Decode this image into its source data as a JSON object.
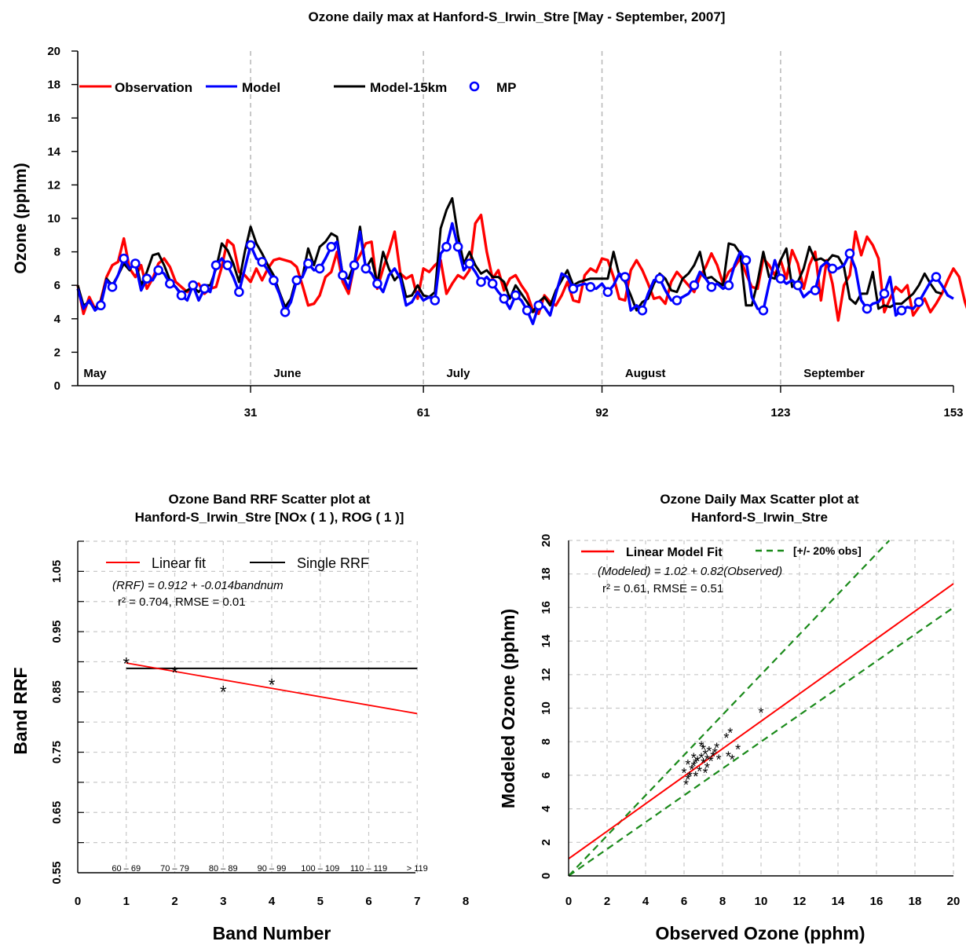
{
  "chart_data": [
    {
      "type": "line",
      "title": "Ozone daily max at  Hanford-S_Irwin_Stre [May - September, 2007]",
      "xlabel": "",
      "ylabel": "Ozone (pphm)",
      "xlim": [
        1,
        153
      ],
      "ylim": [
        0,
        20
      ],
      "xticks": [
        31,
        61,
        92,
        123,
        153
      ],
      "yticks": [
        0,
        2,
        4,
        6,
        8,
        10,
        12,
        14,
        16,
        18,
        20
      ],
      "month_labels": [
        {
          "day": 2,
          "label": "May"
        },
        {
          "day": 35,
          "label": "June"
        },
        {
          "day": 65,
          "label": "July"
        },
        {
          "day": 96,
          "label": "August"
        },
        {
          "day": 127,
          "label": "September"
        }
      ],
      "month_boundaries": [
        31,
        61,
        92,
        123
      ],
      "legend": [
        "Observation",
        "Model",
        "Model-15km",
        "MP"
      ],
      "colors": {
        "Observation": "#ff0000",
        "Model": "#0000ff",
        "Model-15km": "#000000",
        "MP": "#0000ff"
      },
      "series": [
        {
          "name": "Observation",
          "values": [
            6.0,
            4.3,
            5.3,
            4.6,
            5.1,
            6.5,
            7.2,
            7.4,
            8.8,
            7.0,
            6.5,
            7.2,
            5.8,
            6.4,
            7.3,
            7.6,
            7.1,
            6.2,
            5.9,
            5.6,
            6.0,
            6.1,
            5.5,
            5.8,
            5.9,
            7.1,
            8.7,
            8.4,
            6.8,
            6.6,
            6.2,
            7.0,
            6.3,
            7.0,
            7.5,
            7.6,
            7.5,
            7.4,
            7.1,
            6.0,
            4.8,
            4.9,
            5.4,
            6.5,
            6.8,
            8.0,
            6.2,
            5.5,
            7.2,
            7.8,
            8.5,
            8.6,
            5.8,
            7.0,
            8.0,
            9.2,
            6.7,
            6.4,
            6.6,
            5.2,
            7.0,
            6.8,
            7.2,
            7.5,
            5.5,
            6.1,
            6.6,
            6.4,
            6.9,
            9.7,
            10.2,
            8.0,
            6.4,
            6.9,
            5.7,
            6.4,
            6.6,
            6.0,
            5.5,
            4.5,
            4.3,
            5.4,
            5.0,
            4.8,
            5.4,
            6.2,
            5.1,
            5.0,
            6.6,
            7.0,
            6.8,
            7.6,
            7.5,
            6.5,
            5.2,
            5.1,
            6.9,
            7.5,
            6.9,
            6.1,
            5.2,
            5.3,
            4.9,
            6.2,
            6.8,
            6.4,
            6.0,
            5.6,
            6.5,
            7.1,
            7.9,
            7.2,
            6.1,
            6.8,
            7.1,
            7.6,
            6.7,
            5.9,
            5.8,
            7.6,
            7.2,
            6.6,
            7.5,
            6.4,
            8.1,
            7.3,
            5.8,
            7.2,
            8.0,
            5.1,
            7.5,
            6.1,
            3.9,
            6.0,
            6.6,
            9.2,
            7.8,
            8.9,
            8.4,
            7.6,
            4.4,
            5.2,
            5.9,
            5.6,
            6.0,
            4.2,
            4.7,
            5.2,
            4.4,
            4.9,
            5.5,
            6.3,
            7.0,
            6.5,
            5.0,
            4.0,
            6.2
          ]
        },
        {
          "name": "Model",
          "values": [
            5.8,
            4.6,
            5.1,
            4.5,
            4.8,
            6.3,
            5.9,
            6.6,
            7.6,
            7.0,
            7.3,
            5.7,
            6.4,
            6.3,
            6.9,
            6.7,
            6.1,
            5.9,
            5.4,
            5.1,
            6.0,
            5.1,
            5.8,
            5.6,
            7.2,
            7.6,
            7.2,
            6.5,
            5.6,
            7.0,
            8.4,
            7.6,
            7.4,
            6.9,
            6.3,
            5.5,
            4.4,
            5.0,
            6.3,
            6.5,
            7.3,
            6.9,
            7.0,
            7.6,
            8.3,
            8.6,
            6.6,
            5.8,
            7.2,
            9.2,
            7.0,
            6.7,
            6.1,
            5.6,
            6.6,
            7.0,
            6.4,
            4.8,
            5.0,
            5.6,
            5.1,
            5.3,
            5.1,
            7.9,
            8.3,
            9.7,
            8.3,
            6.9,
            7.3,
            6.8,
            6.2,
            6.5,
            6.1,
            5.6,
            5.2,
            4.6,
            5.4,
            5.1,
            4.5,
            3.7,
            4.8,
            4.7,
            4.2,
            5.5,
            6.7,
            6.5,
            5.8,
            6.0,
            6.1,
            5.9,
            5.8,
            6.1,
            5.6,
            6.0,
            6.7,
            6.5,
            4.5,
            4.8,
            4.5,
            5.5,
            6.3,
            6.4,
            5.7,
            5.1,
            5.1,
            5.3,
            5.5,
            6.0,
            6.8,
            6.4,
            5.9,
            6.1,
            5.8,
            6.0,
            7.2,
            8.0,
            7.5,
            5.3,
            4.6,
            4.5,
            6.1,
            7.5,
            6.4,
            6.1,
            6.3,
            6.0,
            5.3,
            5.6,
            5.7,
            7.1,
            7.4,
            7.0,
            7.0,
            7.2,
            7.9,
            7.0,
            5.1,
            4.6,
            4.9,
            5.0,
            5.5,
            6.5,
            4.2,
            4.5,
            4.7,
            4.6,
            5.0,
            5.6,
            6.2,
            6.5,
            6.0,
            5.4,
            5.2
          ]
        },
        {
          "name": "Model-15km",
          "values": [
            6.0,
            4.8,
            5.0,
            4.6,
            5.0,
            6.4,
            6.0,
            6.6,
            7.3,
            6.9,
            7.5,
            6.0,
            6.8,
            7.8,
            7.9,
            7.2,
            6.3,
            5.9,
            5.5,
            5.7,
            5.9,
            5.6,
            6.0,
            6.0,
            7.0,
            8.5,
            8.1,
            7.3,
            6.2,
            8.0,
            9.5,
            8.5,
            7.9,
            7.2,
            6.6,
            5.6,
            4.7,
            5.2,
            6.5,
            6.5,
            8.2,
            7.2,
            8.3,
            8.6,
            9.1,
            8.9,
            6.6,
            6.4,
            7.3,
            9.5,
            7.0,
            7.6,
            6.1,
            8.0,
            7.0,
            6.3,
            6.7,
            5.3,
            5.4,
            6.0,
            5.4,
            5.3,
            5.6,
            9.4,
            10.5,
            11.2,
            9.0,
            7.3,
            8.0,
            7.2,
            6.7,
            6.9,
            6.5,
            6.5,
            6.2,
            5.2,
            6.0,
            5.5,
            5.0,
            4.4,
            5.0,
            5.3,
            4.8,
            5.7,
            6.3,
            6.9,
            6.0,
            6.2,
            6.3,
            6.4,
            6.4,
            6.4,
            6.4,
            8.0,
            6.6,
            6.2,
            5.4,
            4.5,
            5.0,
            5.2,
            6.1,
            6.7,
            6.4,
            5.7,
            5.6,
            6.4,
            6.7,
            7.2,
            8.0,
            6.4,
            6.5,
            6.2,
            6.0,
            8.5,
            8.4,
            7.9,
            4.8,
            4.8,
            6.2,
            8.0,
            6.5,
            6.4,
            7.5,
            8.2,
            5.9,
            6.2,
            7.0,
            8.3,
            7.5,
            7.6,
            7.4,
            7.8,
            7.7,
            7.1,
            5.2,
            4.9,
            5.5,
            5.5,
            6.8,
            4.6,
            4.8,
            4.7,
            4.9,
            4.9,
            5.2,
            5.5,
            6.0,
            6.7,
            6.1,
            5.6,
            5.5
          ]
        }
      ]
    },
    {
      "type": "scatter",
      "title": "Ozone Band RRF Scatter plot at",
      "subtitle": "Hanford-S_Irwin_Stre  [NOx ( 1 ), ROG ( 1 )]",
      "xlabel": "Band Number",
      "ylabel": "Band RRF",
      "xlim": [
        0,
        8
      ],
      "ylim": [
        0.55,
        1.1
      ],
      "xticks": [
        0,
        1,
        2,
        3,
        4,
        5,
        6,
        7,
        8
      ],
      "yticks": [
        0.55,
        0.65,
        0.75,
        0.85,
        0.95,
        1.05
      ],
      "legend": [
        "Linear fit",
        "Single RRF"
      ],
      "fit_text": "(RRF) = 0.912 + -0.014bandnum",
      "stats_text": "r² = 0.704,  RMSE = 0.01",
      "points": [
        {
          "x": 1,
          "y": 0.9
        },
        {
          "x": 2,
          "y": 0.885
        },
        {
          "x": 3,
          "y": 0.853
        },
        {
          "x": 4,
          "y": 0.865
        }
      ],
      "fit": {
        "intercept": 0.912,
        "slope": -0.014,
        "x_range": [
          1,
          7
        ]
      },
      "single_rrf": {
        "value": 0.889,
        "x_range": [
          1,
          7
        ]
      },
      "band_labels": [
        "60 – 69",
        "70 – 79",
        "80 – 89",
        "90 – 99",
        "100 – 109",
        "110 – 119",
        "> 119"
      ],
      "colors": {
        "fit": "#ff0000",
        "single": "#000000"
      }
    },
    {
      "type": "scatter",
      "title": "Ozone Daily Max Scatter plot at",
      "subtitle": "Hanford-S_Irwin_Stre",
      "xlabel": "Observed Ozone (pphm)",
      "ylabel": "Modeled Ozone (pphm)",
      "xlim": [
        0,
        20
      ],
      "ylim": [
        0,
        20
      ],
      "xticks": [
        0,
        2,
        4,
        6,
        8,
        10,
        12,
        14,
        16,
        18,
        20
      ],
      "yticks": [
        0,
        2,
        4,
        6,
        8,
        10,
        12,
        14,
        16,
        18,
        20
      ],
      "legend": [
        "Linear Model Fit",
        "[+/- 20% obs]"
      ],
      "fit_text": "(Modeled) = 1.02 + 0.82(Observed)",
      "stats_text": "r² = 0.61,  RMSE = 0.51",
      "fit": {
        "intercept": 1.02,
        "slope": 0.82
      },
      "bounds": [
        0.8,
        1.2
      ],
      "points": [
        {
          "x": 6.1,
          "y": 5.5
        },
        {
          "x": 6.2,
          "y": 5.8
        },
        {
          "x": 6.3,
          "y": 6.0
        },
        {
          "x": 6.0,
          "y": 6.2
        },
        {
          "x": 6.4,
          "y": 6.4
        },
        {
          "x": 6.6,
          "y": 6.0
        },
        {
          "x": 6.5,
          "y": 6.6
        },
        {
          "x": 6.8,
          "y": 6.3
        },
        {
          "x": 6.7,
          "y": 6.9
        },
        {
          "x": 6.9,
          "y": 7.1
        },
        {
          "x": 7.0,
          "y": 6.8
        },
        {
          "x": 7.1,
          "y": 7.3
        },
        {
          "x": 7.2,
          "y": 7.0
        },
        {
          "x": 7.3,
          "y": 7.5
        },
        {
          "x": 7.0,
          "y": 7.6
        },
        {
          "x": 7.4,
          "y": 6.9
        },
        {
          "x": 7.5,
          "y": 7.2
        },
        {
          "x": 7.6,
          "y": 7.4
        },
        {
          "x": 7.8,
          "y": 7.0
        },
        {
          "x": 8.2,
          "y": 8.3
        },
        {
          "x": 8.4,
          "y": 8.6
        },
        {
          "x": 8.8,
          "y": 7.6
        },
        {
          "x": 8.3,
          "y": 7.2
        },
        {
          "x": 10.0,
          "y": 9.8
        },
        {
          "x": 6.5,
          "y": 7.1
        },
        {
          "x": 6.9,
          "y": 7.8
        },
        {
          "x": 7.2,
          "y": 6.5
        },
        {
          "x": 6.2,
          "y": 6.7
        },
        {
          "x": 7.7,
          "y": 7.7
        },
        {
          "x": 8.5,
          "y": 7.0
        },
        {
          "x": 7.1,
          "y": 6.2
        },
        {
          "x": 6.6,
          "y": 6.8
        }
      ],
      "colors": {
        "fit": "#ff0000",
        "bounds": "#1a8a1a"
      }
    }
  ]
}
